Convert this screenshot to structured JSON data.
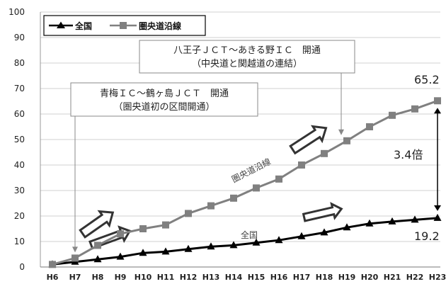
{
  "chart_data": {
    "type": "line",
    "categories": [
      "H6",
      "H7",
      "H8",
      "H9",
      "H10",
      "H11",
      "H12",
      "H13",
      "H14",
      "H15",
      "H16",
      "H17",
      "H18",
      "H19",
      "H20",
      "H21",
      "H22",
      "H23"
    ],
    "ylim": [
      0,
      100
    ],
    "yticks": [
      0,
      10,
      20,
      30,
      40,
      50,
      60,
      70,
      80,
      90,
      100
    ],
    "grid": true,
    "legend_position": "top-left",
    "series": [
      {
        "name": "全国",
        "color": "#000000",
        "marker": "triangle",
        "values": [
          1.0,
          2.0,
          3.0,
          4.0,
          5.5,
          6.0,
          7.0,
          8.0,
          8.5,
          9.5,
          10.5,
          12.0,
          13.5,
          15.5,
          17.0,
          17.8,
          18.5,
          19.2
        ]
      },
      {
        "name": "圏央道沿線",
        "color": "#808080",
        "marker": "square",
        "values": [
          1.0,
          3.5,
          8.5,
          13.0,
          15.0,
          16.5,
          21.0,
          24.0,
          27.0,
          31.0,
          34.5,
          40.0,
          44.5,
          49.5,
          55.0,
          59.5,
          62.0,
          65.2
        ]
      }
    ],
    "series_labels": {
      "national": "全国",
      "ken_o": "圏央道沿線"
    },
    "annotations": {
      "box1_line1": "八王子ＪＣＴ～あきる野ＩＣ　開通",
      "box1_line2": "（中央道と関越道の連結）",
      "box2_line1": "青梅ＩＣ～鶴ヶ島ＪＣＴ　開通",
      "box2_line2": "（圏央道初の区間開通）",
      "end_value_ken_o": "65.2",
      "end_value_national": "19.2",
      "ratio": "3.4倍"
    }
  }
}
